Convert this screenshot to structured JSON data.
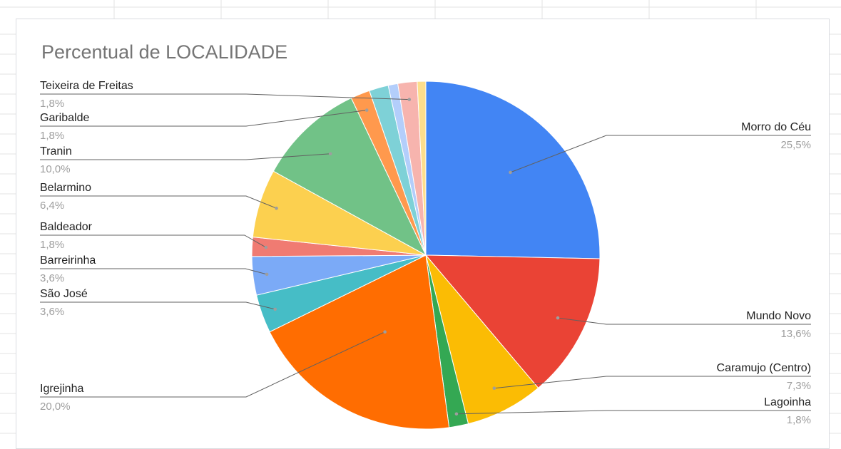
{
  "chart_data": {
    "type": "pie",
    "title": "Percentual de LOCALIDADE",
    "slices": [
      {
        "label": "Morro do Céu",
        "value": 25.5,
        "display": "25,5%",
        "color": "#4285f4"
      },
      {
        "label": "Mundo Novo",
        "value": 13.6,
        "display": "13,6%",
        "color": "#ea4335"
      },
      {
        "label": "Caramujo (Centro)",
        "value": 7.3,
        "display": "7,3%",
        "color": "#fbbc04"
      },
      {
        "label": "Lagoinha",
        "value": 1.8,
        "display": "1,8%",
        "color": "#34a853"
      },
      {
        "label": "Igrejinha",
        "value": 20.0,
        "display": "20,0%",
        "color": "#ff6d01"
      },
      {
        "label": "São José",
        "value": 3.6,
        "display": "3,6%",
        "color": "#46bdc6"
      },
      {
        "label": "Barreirinha",
        "value": 3.6,
        "display": "3,6%",
        "color": "#7baaf7"
      },
      {
        "label": "Baldeador",
        "value": 1.8,
        "display": "1,8%",
        "color": "#f07b72"
      },
      {
        "label": "Belarmino",
        "value": 6.4,
        "display": "6,4%",
        "color": "#fcd04f"
      },
      {
        "label": "Tranin",
        "value": 10.0,
        "display": "10,0%",
        "color": "#71c287"
      },
      {
        "label": "Garibalde",
        "value": 1.8,
        "display": "1,8%",
        "color": "#ff994d"
      },
      {
        "label": "",
        "value": 1.8,
        "display": "",
        "color": "#7ed1d7"
      },
      {
        "label": "",
        "value": 0.9,
        "display": "",
        "color": "#b3cefb"
      },
      {
        "label": "Teixeira de Freitas",
        "value": 1.8,
        "display": "1,8%",
        "color": "#f7b4ae"
      },
      {
        "label": "",
        "value": 0.8,
        "display": "",
        "color": "#fdde8c"
      }
    ],
    "legend": "labels with leader lines",
    "start_angle": "12 o'clock, clockwise"
  }
}
